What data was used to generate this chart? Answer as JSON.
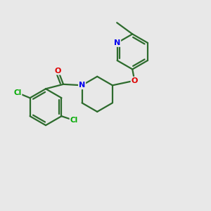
{
  "background_color": "#e8e8e8",
  "bond_color": "#2d6b2d",
  "atom_colors": {
    "N": "#0000ee",
    "O": "#dd0000",
    "Cl": "#00aa00"
  },
  "line_width": 1.6,
  "figsize": [
    3.0,
    3.0
  ],
  "dpi": 100
}
